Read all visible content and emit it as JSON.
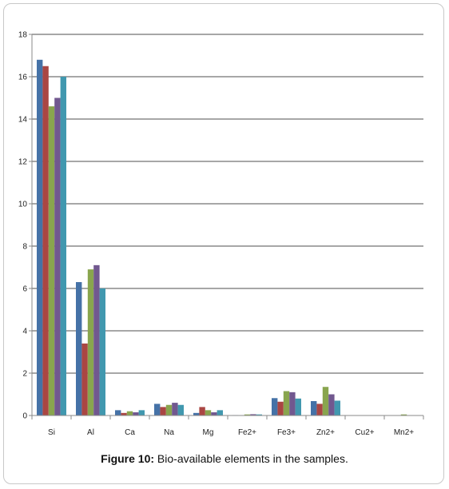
{
  "chart_data": {
    "type": "bar",
    "categories": [
      "Si",
      "Al",
      "Ca",
      "Na",
      "Mg",
      "Fe2+",
      "Fe3+",
      "Zn2+",
      "Cu2+",
      "Mn2+"
    ],
    "series": [
      {
        "values": [
          16.8,
          6.3,
          0.25,
          0.55,
          0.12,
          0.02,
          0.82,
          0.68,
          0.0,
          0.0
        ]
      },
      {
        "values": [
          16.5,
          3.4,
          0.12,
          0.4,
          0.4,
          0.0,
          0.65,
          0.55,
          0.0,
          0.0
        ]
      },
      {
        "values": [
          14.6,
          6.9,
          0.2,
          0.5,
          0.25,
          0.05,
          1.15,
          1.35,
          0.0,
          0.05
        ]
      },
      {
        "values": [
          15.0,
          7.1,
          0.15,
          0.6,
          0.15,
          0.06,
          1.1,
          1.0,
          0.0,
          0.0
        ]
      },
      {
        "values": [
          16.0,
          6.0,
          0.25,
          0.5,
          0.25,
          0.05,
          0.8,
          0.7,
          0.0,
          0.0
        ]
      }
    ],
    "series_colors": [
      "#4572a7",
      "#aa4643",
      "#89a54e",
      "#71588f",
      "#4198af"
    ],
    "ylim": [
      0,
      18
    ],
    "yticks": [
      0,
      2,
      4,
      6,
      8,
      10,
      12,
      14,
      16,
      18
    ],
    "grid": true,
    "legend": "none"
  },
  "caption": {
    "label": "Figure 10:",
    "text": " Bio-available elements in the samples."
  }
}
